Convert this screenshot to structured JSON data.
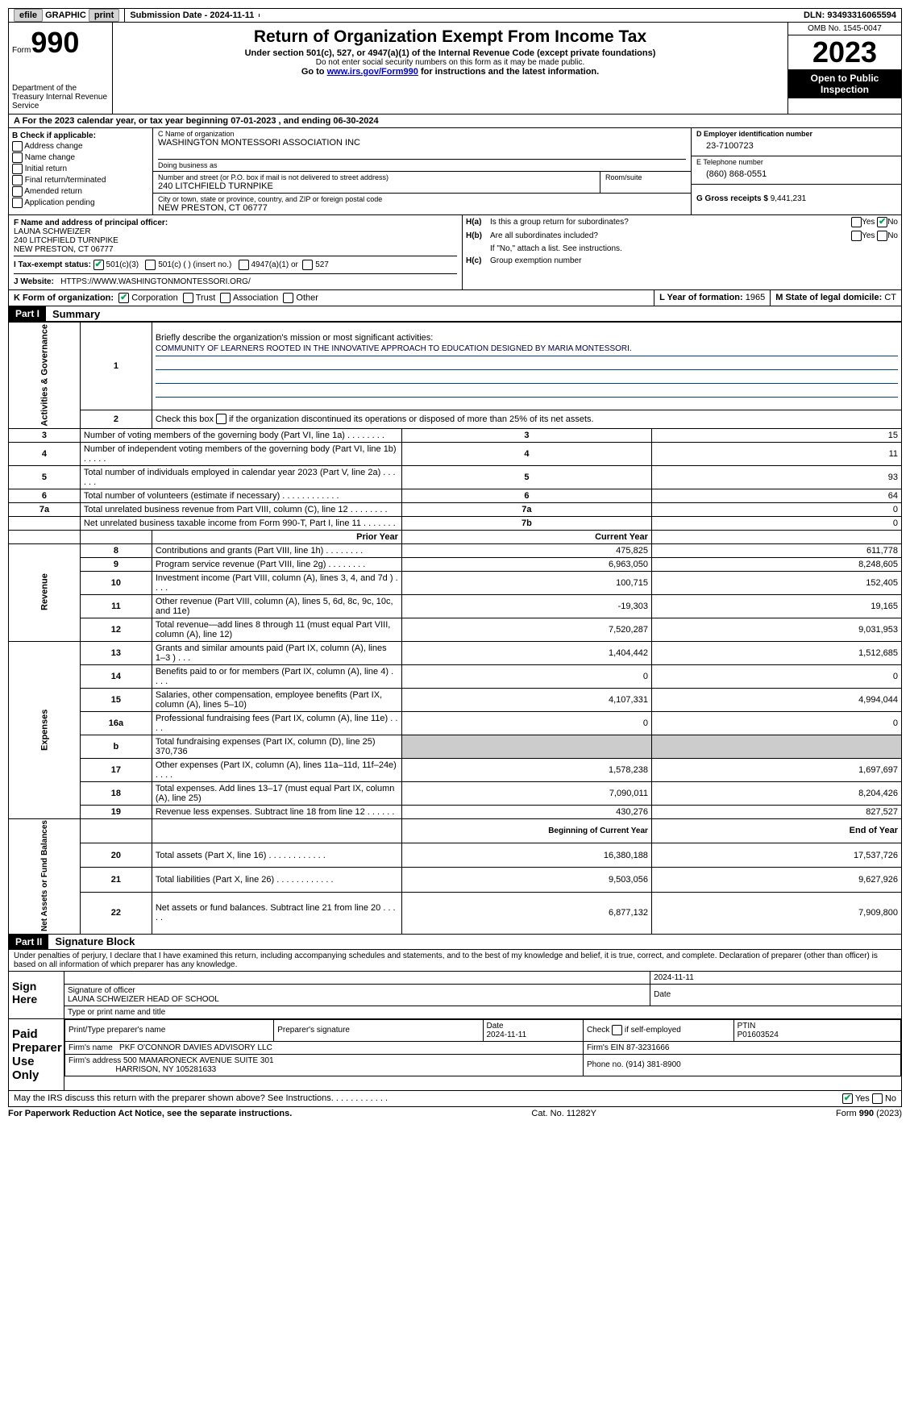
{
  "top_bar": {
    "efile": "efile",
    "graphic": "GRAPHIC",
    "print": "print",
    "submission_label": "Submission Date - 2024-11-11",
    "dln": "DLN: 93493316065594"
  },
  "header": {
    "form_prefix": "Form",
    "form_number": "990",
    "dept": "Department of the Treasury Internal Revenue Service",
    "title": "Return of Organization Exempt From Income Tax",
    "sub1": "Under section 501(c), 527, or 4947(a)(1) of the Internal Revenue Code (except private foundations)",
    "sub2": "Do not enter social security numbers on this form as it may be made public.",
    "sub3_pre": "Go to ",
    "sub3_link": "www.irs.gov/Form990",
    "sub3_post": " for instructions and the latest information.",
    "omb": "OMB No. 1545-0047",
    "year": "2023",
    "open": "Open to Public Inspection"
  },
  "row_a": "A For the 2023 calendar year, or tax year beginning 07-01-2023   , and ending 06-30-2024",
  "col_b": {
    "header": "B Check if applicable:",
    "addr": "Address change",
    "name": "Name change",
    "initial": "Initial return",
    "final": "Final return/terminated",
    "amended": "Amended return",
    "app": "Application pending"
  },
  "col_c": {
    "name_lbl": "C Name of organization",
    "name_val": "WASHINGTON MONTESSORI ASSOCIATION INC",
    "dba_lbl": "Doing business as",
    "dba_val": "",
    "street_lbl": "Number and street (or P.O. box if mail is not delivered to street address)",
    "street_val": "240 LITCHFIELD TURNPIKE",
    "room_lbl": "Room/suite",
    "city_lbl": "City or town, state or province, country, and ZIP or foreign postal code",
    "city_val": "NEW PRESTON, CT  06777"
  },
  "col_d": {
    "ein_lbl": "D Employer identification number",
    "ein_val": "23-7100723",
    "tel_lbl": "E Telephone number",
    "tel_val": "(860) 868-0551",
    "gross_lbl": "G Gross receipts $",
    "gross_val": "9,441,231"
  },
  "row_f": {
    "lbl": "F  Name and address of principal officer:",
    "l1": "LAUNA SCHWEIZER",
    "l2": "240 LITCHFIELD TURNPIKE",
    "l3": "NEW PRESTON, CT  06777"
  },
  "row_h": {
    "ha_lbl": "H(a)",
    "ha_txt": "Is this a group return for subordinates?",
    "hb_lbl": "H(b)",
    "hb_txt": "Are all subordinates included?",
    "hb_note": "If \"No,\" attach a list. See instructions.",
    "hc_lbl": "H(c)",
    "hc_txt": "Group exemption number",
    "yes": "Yes",
    "no": "No"
  },
  "row_i": {
    "lbl": "I   Tax-exempt status:",
    "c3": "501(c)(3)",
    "c": "501(c) (  ) (insert no.)",
    "a1": "4947(a)(1) or",
    "s527": "527"
  },
  "row_j": {
    "lbl": "J   Website:",
    "val": "HTTPS://WWW.WASHINGTONMONTESSORI.ORG/"
  },
  "row_k": {
    "lbl": "K Form of organization:",
    "corp": "Corporation",
    "trust": "Trust",
    "assoc": "Association",
    "other": "Other",
    "l_lbl": "L Year of formation:",
    "l_val": "1965",
    "m_lbl": "M State of legal domicile:",
    "m_val": "CT"
  },
  "part1": {
    "header": "Part I",
    "title": "Summary",
    "q1": "Briefly describe the organization's mission or most significant activities:",
    "mission": "COMMUNITY OF LEARNERS ROOTED IN THE INNOVATIVE APPROACH TO EDUCATION DESIGNED BY MARIA MONTESSORI.",
    "q2": "Check this box       if the organization discontinued its operations or disposed of more than 25% of its net assets.",
    "sections": {
      "gov": "Activities & Governance",
      "rev": "Revenue",
      "exp": "Expenses",
      "net": "Net Assets or Fund Balances"
    },
    "col_prior": "Prior Year",
    "col_current": "Current Year",
    "col_begin": "Beginning of Current Year",
    "col_end": "End of Year",
    "rows_top": [
      {
        "n": "3",
        "t": "Number of voting members of the governing body (Part VI, line 1a)   .    .    .    .    .    .    .    .",
        "l": "3",
        "v": "15"
      },
      {
        "n": "4",
        "t": "Number of independent voting members of the governing body (Part VI, line 1b)   .    .    .    .    .",
        "l": "4",
        "v": "11"
      },
      {
        "n": "5",
        "t": "Total number of individuals employed in calendar year 2023 (Part V, line 2a)   .    .    .    .    .    .",
        "l": "5",
        "v": "93"
      },
      {
        "n": "6",
        "t": "Total number of volunteers (estimate if necessary)   .    .    .    .    .    .    .    .    .    .    .    .",
        "l": "6",
        "v": "64"
      },
      {
        "n": "7a",
        "t": "Total unrelated business revenue from Part VIII, column (C), line 12   .    .    .    .    .    .    .    .",
        "l": "7a",
        "v": "0"
      },
      {
        "n": "",
        "t": "Net unrelated business taxable income from Form 990-T, Part I, line 11   .    .    .    .    .    .    .",
        "l": "7b",
        "v": "0"
      }
    ],
    "rows_rev": [
      {
        "n": "8",
        "t": "Contributions and grants (Part VIII, line 1h)   .    .    .    .    .    .    .    .",
        "p": "475,825",
        "c": "611,778"
      },
      {
        "n": "9",
        "t": "Program service revenue (Part VIII, line 2g)   .    .    .    .    .    .    .    .",
        "p": "6,963,050",
        "c": "8,248,605"
      },
      {
        "n": "10",
        "t": "Investment income (Part VIII, column (A), lines 3, 4, and 7d )   .    .    .    .",
        "p": "100,715",
        "c": "152,405"
      },
      {
        "n": "11",
        "t": "Other revenue (Part VIII, column (A), lines 5, 6d, 8c, 9c, 10c, and 11e)",
        "p": "-19,303",
        "c": "19,165"
      },
      {
        "n": "12",
        "t": "Total revenue—add lines 8 through 11 (must equal Part VIII, column (A), line 12)",
        "p": "7,520,287",
        "c": "9,031,953"
      }
    ],
    "rows_exp": [
      {
        "n": "13",
        "t": "Grants and similar amounts paid (Part IX, column (A), lines 1–3 )   .    .    .",
        "p": "1,404,442",
        "c": "1,512,685"
      },
      {
        "n": "14",
        "t": "Benefits paid to or for members (Part IX, column (A), line 4)   .    .    .    .",
        "p": "0",
        "c": "0"
      },
      {
        "n": "15",
        "t": "Salaries, other compensation, employee benefits (Part IX, column (A), lines 5–10)",
        "p": "4,107,331",
        "c": "4,994,044"
      },
      {
        "n": "16a",
        "t": "Professional fundraising fees (Part IX, column (A), line 11e)   .    .    .    .",
        "p": "0",
        "c": "0"
      },
      {
        "n": "b",
        "t": "Total fundraising expenses (Part IX, column (D), line 25) 370,736",
        "p": "",
        "c": "",
        "gray": true
      },
      {
        "n": "17",
        "t": "Other expenses (Part IX, column (A), lines 11a–11d, 11f–24e)   .    .    .    .",
        "p": "1,578,238",
        "c": "1,697,697"
      },
      {
        "n": "18",
        "t": "Total expenses. Add lines 13–17 (must equal Part IX, column (A), line 25)",
        "p": "7,090,011",
        "c": "8,204,426"
      },
      {
        "n": "19",
        "t": "Revenue less expenses. Subtract line 18 from line 12   .    .    .    .    .    .",
        "p": "430,276",
        "c": "827,527"
      }
    ],
    "rows_net": [
      {
        "n": "20",
        "t": "Total assets (Part X, line 16)   .    .    .    .    .    .    .    .    .    .    .    .",
        "p": "16,380,188",
        "c": "17,537,726"
      },
      {
        "n": "21",
        "t": "Total liabilities (Part X, line 26)   .    .    .    .    .    .    .    .    .    .    .    .",
        "p": "9,503,056",
        "c": "9,627,926"
      },
      {
        "n": "22",
        "t": "Net assets or fund balances. Subtract line 21 from line 20   .    .    .    .    .",
        "p": "6,877,132",
        "c": "7,909,800"
      }
    ]
  },
  "part2": {
    "header": "Part II",
    "title": "Signature Block",
    "decl": "Under penalties of perjury, I declare that I have examined this return, including accompanying schedules and statements, and to the best of my knowledge and belief, it is true, correct, and complete. Declaration of preparer (other than officer) is based on all information of which preparer has any knowledge.",
    "sign_here": "Sign Here",
    "sig_lbl": "Signature of officer",
    "sig_name": "LAUNA SCHWEIZER  HEAD OF SCHOOL",
    "sig_date": "2024-11-11",
    "date_lbl": "Date",
    "type_lbl": "Type or print name and title",
    "paid": "Paid Preparer Use Only",
    "prep_name_lbl": "Print/Type preparer's name",
    "prep_sig_lbl": "Preparer's signature",
    "prep_date": "2024-11-11",
    "self_emp": "Check        if self-employed",
    "ptin_lbl": "PTIN",
    "ptin": "P01603524",
    "firm_name_lbl": "Firm's name",
    "firm_name": "PKF O'CONNOR DAVIES ADVISORY LLC",
    "firm_ein_lbl": "Firm's EIN",
    "firm_ein": "87-3231666",
    "firm_addr_lbl": "Firm's address",
    "firm_addr1": "500 MAMARONECK AVENUE SUITE 301",
    "firm_addr2": "HARRISON, NY  105281633",
    "phone_lbl": "Phone no.",
    "phone": "(914) 381-8900",
    "discuss": "May the IRS discuss this return with the preparer shown above? See Instructions.    .    .    .    .    .    .    .    .    .    .    .",
    "yes": "Yes",
    "no": "No"
  },
  "footer": {
    "pra": "For Paperwork Reduction Act Notice, see the separate instructions.",
    "cat": "Cat. No. 11282Y",
    "form": "Form 990 (2023)"
  }
}
